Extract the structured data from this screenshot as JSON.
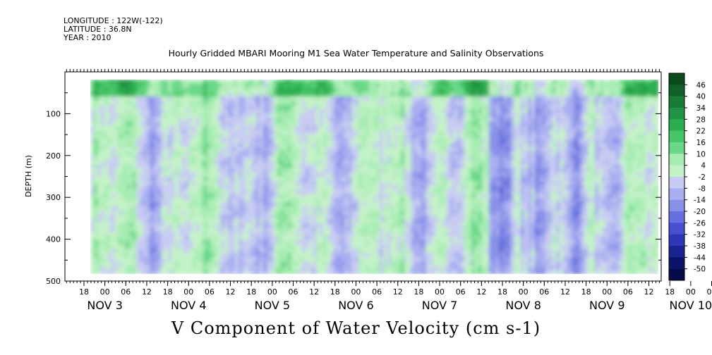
{
  "header": {
    "longitude": "LONGITUDE : 122W(-122)",
    "latitude": "LATITUDE : 36.8N",
    "year": "YEAR : 2010",
    "title": "Hourly Gridded MBARI Mooring M1 Sea Water Temperature and Salinity Observations"
  },
  "chart_data": {
    "type": "heatmap",
    "title": "Hourly Gridded MBARI Mooring M1 Sea Water Temperature and Salinity Observations",
    "xlabel": "",
    "ylabel": "DEPTH (m)",
    "variable_label": "V Component of Water Velocity (cm s-1)",
    "y_ticks": [
      "100",
      "200",
      "300",
      "400",
      "500"
    ],
    "ylim": [
      500,
      0
    ],
    "x_hour_ticks": [
      "18",
      "00",
      "06",
      "12",
      "18",
      "00",
      "06",
      "12",
      "18",
      "00",
      "06",
      "12",
      "18",
      "00",
      "06",
      "12",
      "18",
      "00",
      "06",
      "12",
      "18",
      "00",
      "06",
      "12",
      "18",
      "00",
      "06",
      "12",
      "18",
      "00",
      "06",
      "12"
    ],
    "x_date_labels": [
      "NOV  3",
      "NOV  4",
      "NOV  5",
      "NOV  6",
      "NOV  7",
      "NOV  8",
      "NOV  9",
      "NOV 10"
    ],
    "colorbar_levels": [
      "46",
      "40",
      "34",
      "28",
      "22",
      "16",
      "10",
      "4",
      "-2",
      "-8",
      "-14",
      "-20",
      "-26",
      "-32",
      "-38",
      "-44",
      "-50"
    ],
    "colorbar_colors": [
      "#0a4a1c",
      "#12612a",
      "#1a7a38",
      "#229445",
      "#2aae50",
      "#46c668",
      "#6ad888",
      "#a6ecb2",
      "#c4f2c8",
      "#c8ccf2",
      "#a8aef0",
      "#8890e8",
      "#6670de",
      "#4650d0",
      "#2c38b8",
      "#1a2490",
      "#0c146a",
      "#060a48"
    ],
    "data_x_range": [
      "NOV 2 18",
      "NOV 10 14"
    ],
    "data_y_range": [
      20,
      490
    ]
  }
}
